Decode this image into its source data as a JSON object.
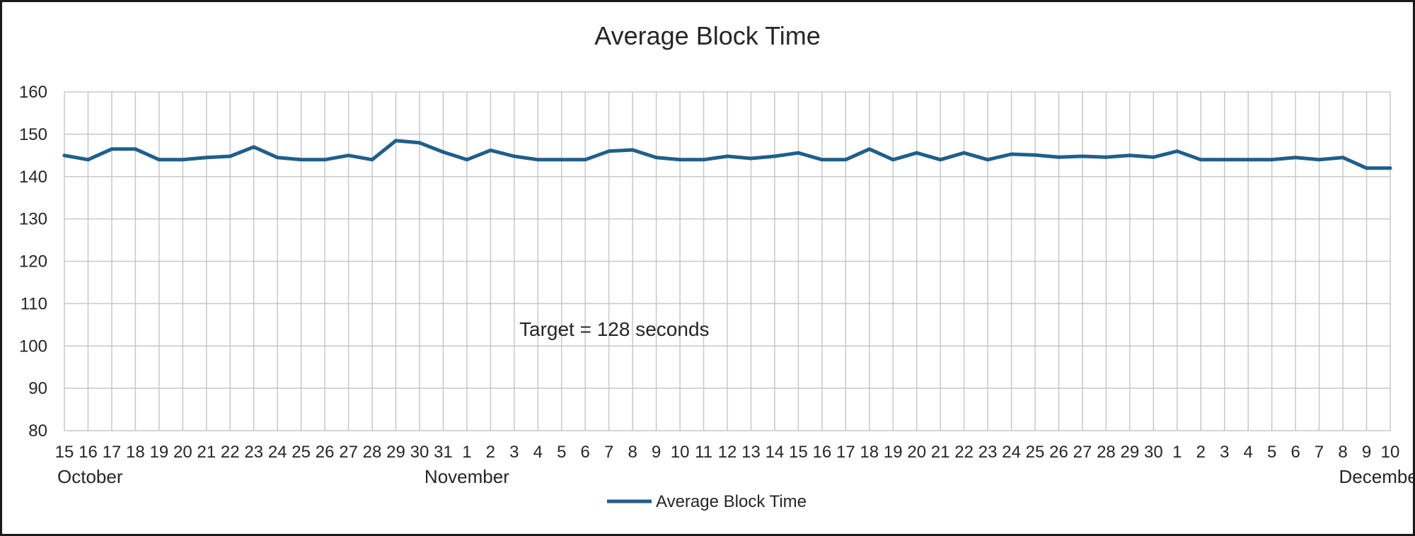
{
  "chart_data": {
    "type": "line",
    "title": "Average Block Time",
    "xlabel": "",
    "ylabel": "",
    "ylim": [
      80,
      160
    ],
    "yticks": [
      80,
      90,
      100,
      110,
      120,
      130,
      140,
      150,
      160
    ],
    "grid": true,
    "legend_position": "bottom",
    "annotation": "Target = 128 seconds",
    "month_labels": [
      {
        "label": "October",
        "at_index": 0,
        "align": "start"
      },
      {
        "label": "November",
        "at_index": 17,
        "align": "middle"
      },
      {
        "label": "December",
        "at_index": 57,
        "align": "end"
      }
    ],
    "x": [
      "15",
      "16",
      "17",
      "18",
      "19",
      "20",
      "21",
      "22",
      "23",
      "24",
      "25",
      "26",
      "27",
      "28",
      "29",
      "30",
      "31",
      "1",
      "2",
      "3",
      "4",
      "5",
      "6",
      "7",
      "8",
      "9",
      "10",
      "11",
      "12",
      "13",
      "14",
      "15",
      "16",
      "17",
      "18",
      "19",
      "20",
      "21",
      "22",
      "23",
      "24",
      "25",
      "26",
      "27",
      "28",
      "29",
      "30",
      "1",
      "2",
      "3",
      "4",
      "5",
      "6",
      "7",
      "8",
      "9",
      "10"
    ],
    "series": [
      {
        "name": "Average Block Time",
        "color": "#1f5f8b",
        "values": [
          145,
          144,
          146.5,
          146.5,
          144,
          144,
          144.5,
          144.8,
          147,
          144.5,
          144,
          144,
          145,
          144,
          148.5,
          148,
          145.8,
          144,
          146.2,
          144.8,
          144,
          144,
          144,
          146,
          146.3,
          144.5,
          144,
          144,
          144.8,
          144.3,
          144.8,
          145.6,
          144,
          144,
          146.5,
          144,
          145.6,
          144,
          145.6,
          144,
          145.3,
          145.1,
          144.6,
          144.8,
          144.6,
          145,
          144.6,
          146,
          144,
          144,
          144,
          144,
          144.5,
          144,
          144.5,
          142,
          142
        ]
      }
    ]
  }
}
